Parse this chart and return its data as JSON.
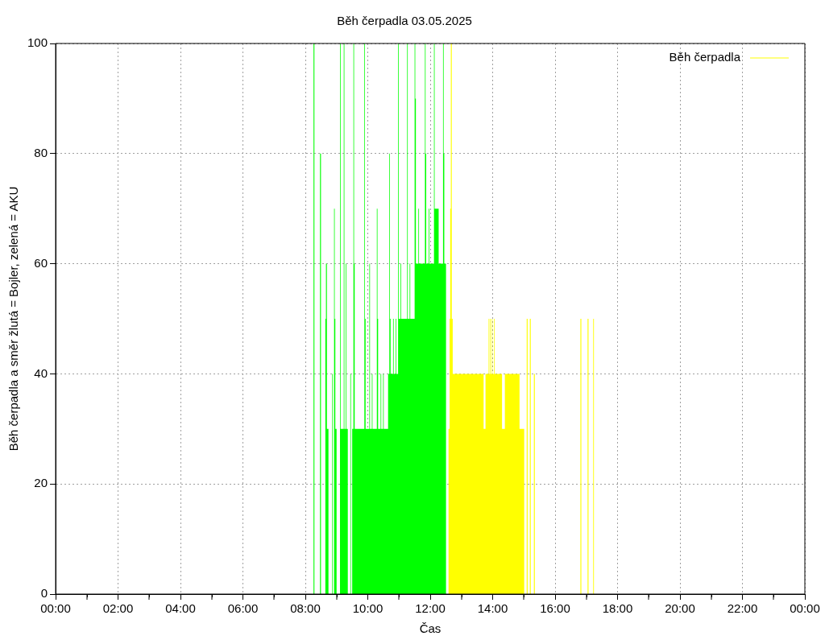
{
  "chart_data": {
    "type": "area",
    "title": "Běh čerpadla 03.05.2025",
    "xlabel": "Čas",
    "ylabel": "Běh čerpadla a směr žlutá = Bojler, zelená = AKU",
    "xlim": [
      0,
      24
    ],
    "xticks": [
      {
        "value": 0,
        "label": "00:00"
      },
      {
        "value": 1,
        "label": null
      },
      {
        "value": 2,
        "label": "02:00"
      },
      {
        "value": 3,
        "label": null
      },
      {
        "value": 4,
        "label": "04:00"
      },
      {
        "value": 5,
        "label": null
      },
      {
        "value": 6,
        "label": "06:00"
      },
      {
        "value": 7,
        "label": null
      },
      {
        "value": 8,
        "label": "08:00"
      },
      {
        "value": 9,
        "label": null
      },
      {
        "value": 10,
        "label": "10:00"
      },
      {
        "value": 11,
        "label": null
      },
      {
        "value": 12,
        "label": "12:00"
      },
      {
        "value": 13,
        "label": null
      },
      {
        "value": 14,
        "label": "14:00"
      },
      {
        "value": 15,
        "label": null
      },
      {
        "value": 16,
        "label": "16:00"
      },
      {
        "value": 17,
        "label": null
      },
      {
        "value": 18,
        "label": "18:00"
      },
      {
        "value": 19,
        "label": null
      },
      {
        "value": 20,
        "label": "20:00"
      },
      {
        "value": 21,
        "label": null
      },
      {
        "value": 22,
        "label": "22:00"
      },
      {
        "value": 23,
        "label": null
      },
      {
        "value": 24,
        "label": "00:00"
      }
    ],
    "ylim": [
      0,
      100
    ],
    "yticks": [
      0,
      20,
      40,
      60,
      80,
      100
    ],
    "grid": true,
    "legend": "top right",
    "series": [
      {
        "name": "Běh čerpadla",
        "color": "#ffff00",
        "x": [
          12.58,
          12.62,
          12.64,
          12.66,
          12.69,
          12.72,
          13.71,
          13.77,
          13.87,
          13.89,
          13.91,
          13.93,
          13.97,
          13.99,
          14.04,
          14.06,
          14.3,
          14.39,
          14.86,
          15.01,
          15.09,
          15.12,
          15.19,
          15.22,
          15.32,
          15.35,
          16.81,
          16.84,
          17.04,
          17.07,
          17.22,
          17.25
        ],
        "values": [
          30,
          50,
          70,
          100,
          50,
          40,
          30,
          40,
          50,
          40,
          50,
          40,
          50,
          40,
          50,
          40,
          30,
          40,
          30,
          0,
          50,
          0,
          50,
          0,
          40,
          0,
          50,
          0,
          50,
          0,
          50,
          0
        ]
      },
      {
        "color": "#00ff00",
        "x": [
          8.26,
          8.29,
          8.47,
          8.5,
          8.64,
          8.66,
          8.69,
          8.74,
          8.86,
          8.88,
          8.92,
          8.94,
          8.96,
          9.0,
          9.11,
          9.13,
          9.23,
          9.25,
          9.29,
          9.31,
          9.36,
          9.44,
          9.46,
          9.5,
          9.54,
          9.56,
          9.58,
          9.89,
          9.91,
          9.93,
          10.05,
          10.07,
          10.13,
          10.15,
          10.29,
          10.31,
          10.33,
          10.41,
          10.43,
          10.49,
          10.51,
          10.65,
          10.69,
          10.71,
          10.73,
          10.81,
          10.83,
          10.89,
          10.91,
          10.97,
          10.99,
          11.05,
          11.07,
          11.26,
          11.28,
          11.34,
          11.36,
          11.5,
          11.52,
          11.54,
          11.62,
          11.64,
          11.83,
          11.85,
          11.87,
          11.95,
          11.97,
          12.12,
          12.14,
          12.27,
          12.41,
          12.43,
          12.45,
          12.51
        ],
        "values": [
          100,
          0,
          80,
          0,
          50,
          60,
          30,
          0,
          40,
          0,
          70,
          50,
          30,
          0,
          100,
          30,
          100,
          30,
          60,
          30,
          0,
          40,
          0,
          30,
          100,
          60,
          30,
          100,
          50,
          30,
          60,
          30,
          40,
          30,
          70,
          50,
          30,
          40,
          30,
          40,
          30,
          40,
          80,
          50,
          40,
          50,
          40,
          50,
          40,
          100,
          50,
          60,
          50,
          100,
          50,
          60,
          50,
          100,
          90,
          60,
          70,
          60,
          100,
          80,
          60,
          70,
          60,
          100,
          70,
          60,
          100,
          80,
          60,
          0
        ]
      }
    ]
  }
}
